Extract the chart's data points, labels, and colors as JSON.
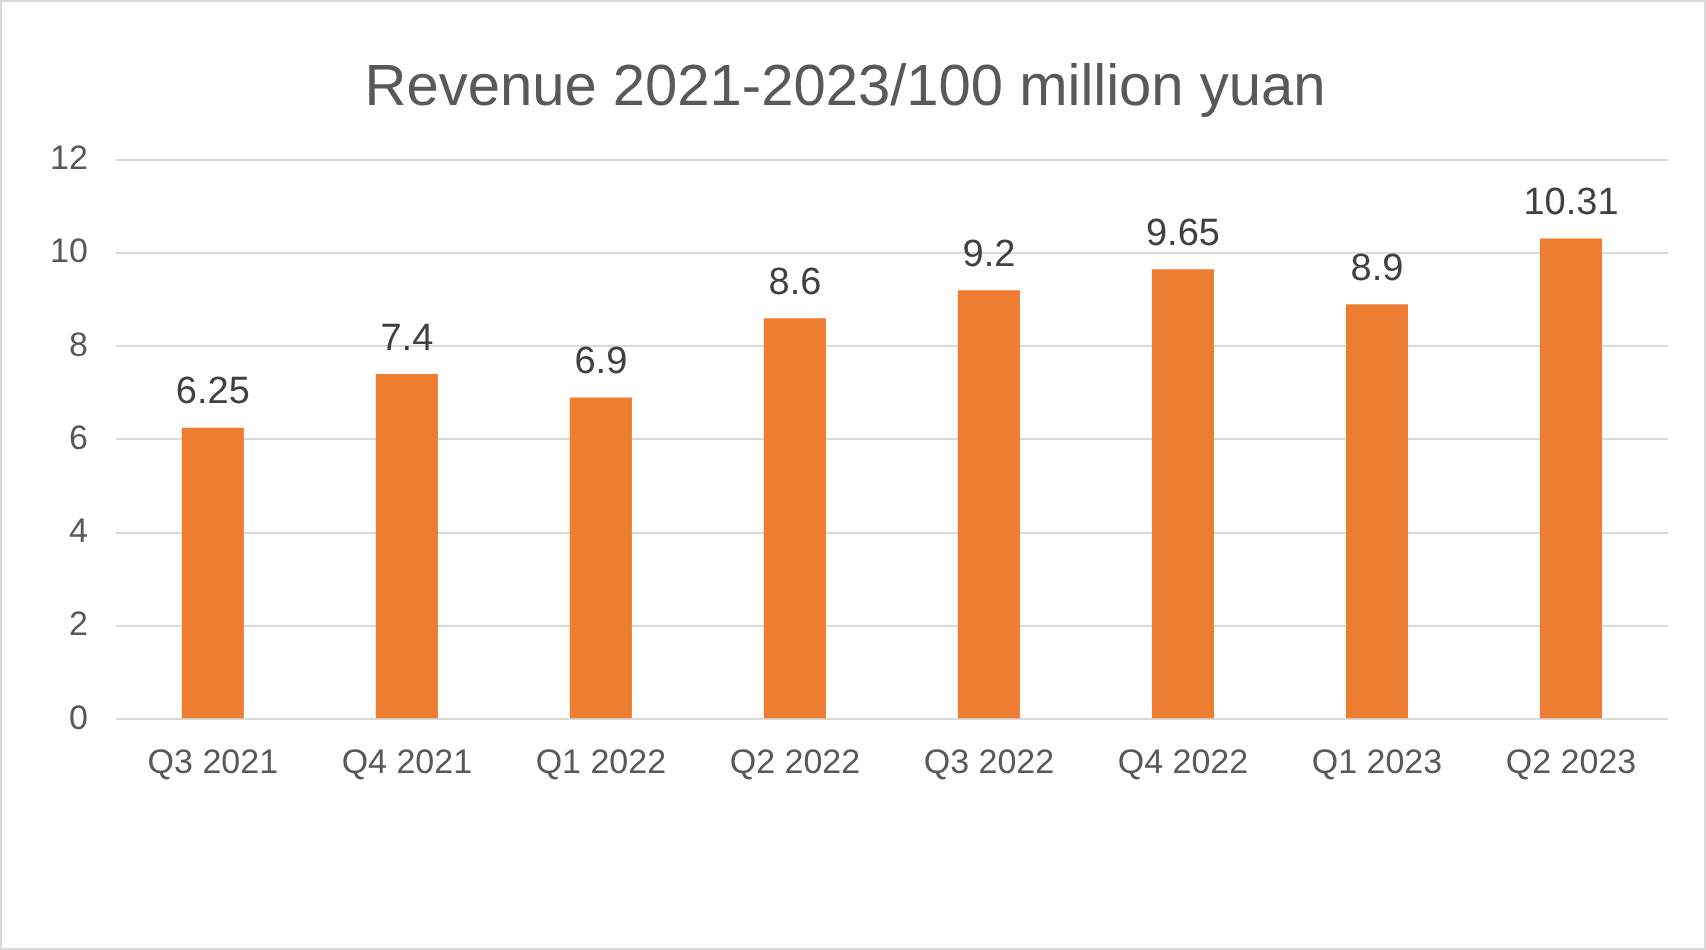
{
  "chart_data": {
    "type": "bar",
    "title": "Revenue 2021-2023/100 million yuan",
    "categories": [
      "Q3 2021",
      "Q4 2021",
      "Q1 2022",
      "Q2 2022",
      "Q3 2022",
      "Q4 2022",
      "Q1 2023",
      "Q2 2023"
    ],
    "values": [
      6.25,
      7.4,
      6.9,
      8.6,
      9.2,
      9.65,
      8.9,
      10.31
    ],
    "color": "#ed7d31",
    "ylim": [
      0,
      12
    ],
    "yticks": [
      0,
      2,
      4,
      6,
      8,
      10,
      12
    ],
    "grid": "y",
    "data_labels": true
  }
}
